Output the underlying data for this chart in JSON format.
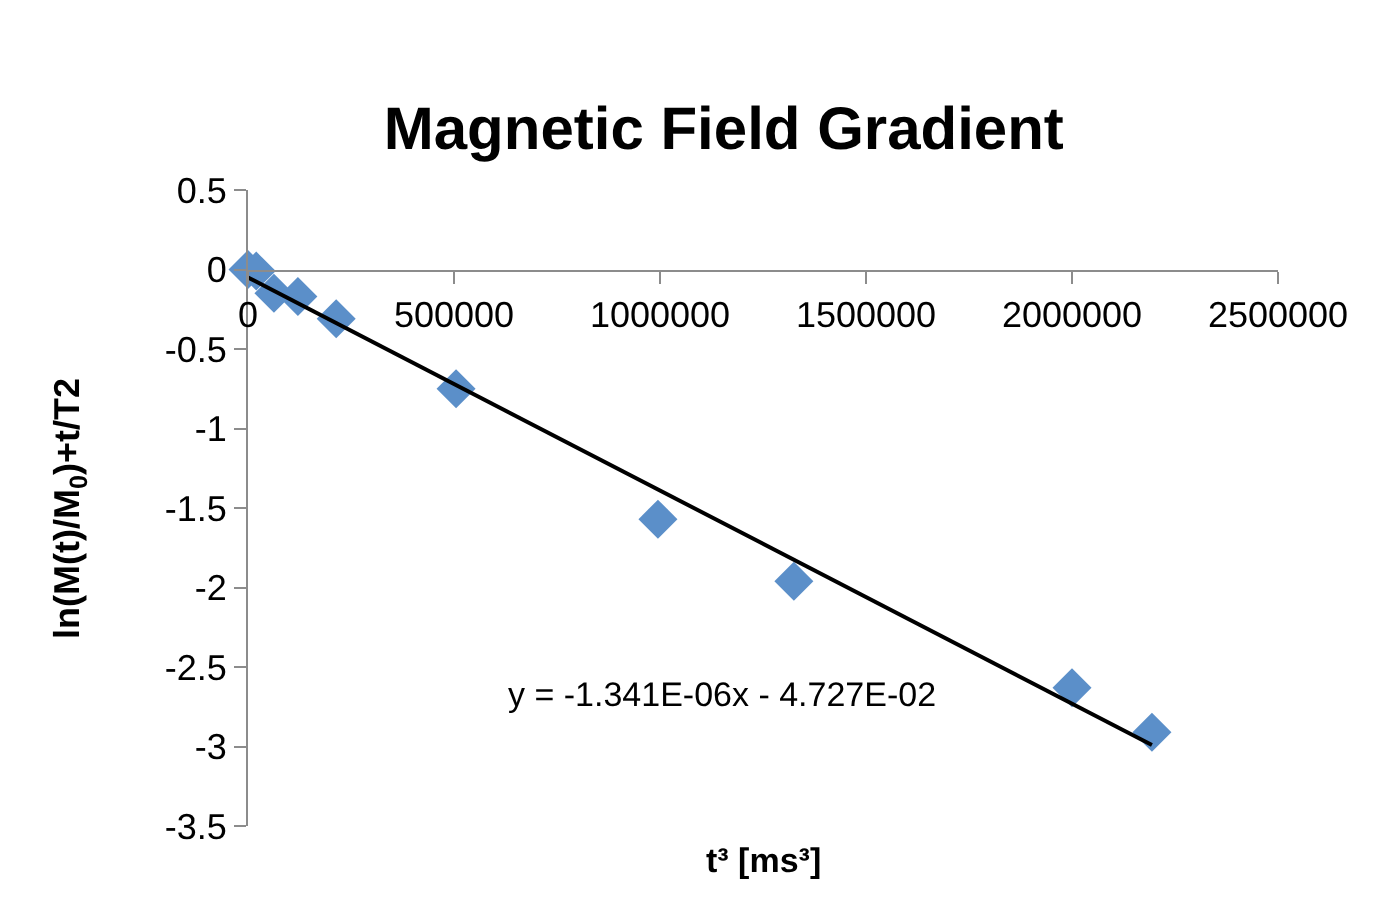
{
  "chart_data": {
    "type": "scatter",
    "title": "Magnetic Field Gradient",
    "xlabel": "t³ [ms³]",
    "ylabel": "ln(M(t)/M$_{0}$)+t/T2",
    "series": [
      {
        "color": "#5b8fc9",
        "marker": "diamond",
        "x": [
          0,
          20000,
          63000,
          121000,
          214000,
          505000,
          995000,
          1325000,
          2000000,
          2194000
        ],
        "values": [
          0,
          -0.01,
          -0.15,
          -0.17,
          -0.31,
          -0.75,
          -1.57,
          -1.96,
          -2.63,
          -2.91
        ]
      },
      {
        "type": "line",
        "color": "#000000",
        "marker": "none",
        "line_style": "solid",
        "x": [
          0,
          2194000
        ],
        "values": [
          -0.05,
          -2.99
        ]
      }
    ],
    "xlim": [
      0,
      2500000
    ],
    "xticks": [
      0,
      500000,
      1000000,
      1500000,
      2000000,
      2500000
    ],
    "ylim": [
      -3.5,
      0.5
    ],
    "yticks": [
      0.5,
      0,
      -0.5,
      -1,
      -1.5,
      -2,
      -2.5,
      -3,
      -3.5
    ],
    "annotations": [
      "y = -1.341E-06x - 4.727E-02"
    ]
  }
}
